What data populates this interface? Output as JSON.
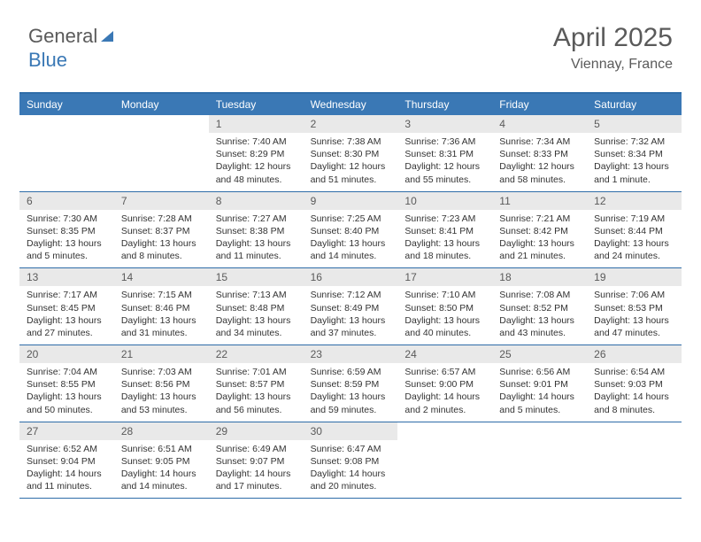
{
  "logo": {
    "text1": "General",
    "text2": "Blue"
  },
  "header": {
    "title": "April 2025",
    "location": "Viennay, France"
  },
  "colors": {
    "header_bg": "#3a78b5",
    "header_text": "#ffffff",
    "daynum_bg": "#e9e9e9",
    "border": "#2e6ca8",
    "body_text": "#333333",
    "title_text": "#5a5a5a"
  },
  "dayheads": [
    "Sunday",
    "Monday",
    "Tuesday",
    "Wednesday",
    "Thursday",
    "Friday",
    "Saturday"
  ],
  "weeks": [
    [
      null,
      null,
      {
        "day": "1",
        "sunrise": "Sunrise: 7:40 AM",
        "sunset": "Sunset: 8:29 PM",
        "daylight": "Daylight: 12 hours and 48 minutes."
      },
      {
        "day": "2",
        "sunrise": "Sunrise: 7:38 AM",
        "sunset": "Sunset: 8:30 PM",
        "daylight": "Daylight: 12 hours and 51 minutes."
      },
      {
        "day": "3",
        "sunrise": "Sunrise: 7:36 AM",
        "sunset": "Sunset: 8:31 PM",
        "daylight": "Daylight: 12 hours and 55 minutes."
      },
      {
        "day": "4",
        "sunrise": "Sunrise: 7:34 AM",
        "sunset": "Sunset: 8:33 PM",
        "daylight": "Daylight: 12 hours and 58 minutes."
      },
      {
        "day": "5",
        "sunrise": "Sunrise: 7:32 AM",
        "sunset": "Sunset: 8:34 PM",
        "daylight": "Daylight: 13 hours and 1 minute."
      }
    ],
    [
      {
        "day": "6",
        "sunrise": "Sunrise: 7:30 AM",
        "sunset": "Sunset: 8:35 PM",
        "daylight": "Daylight: 13 hours and 5 minutes."
      },
      {
        "day": "7",
        "sunrise": "Sunrise: 7:28 AM",
        "sunset": "Sunset: 8:37 PM",
        "daylight": "Daylight: 13 hours and 8 minutes."
      },
      {
        "day": "8",
        "sunrise": "Sunrise: 7:27 AM",
        "sunset": "Sunset: 8:38 PM",
        "daylight": "Daylight: 13 hours and 11 minutes."
      },
      {
        "day": "9",
        "sunrise": "Sunrise: 7:25 AM",
        "sunset": "Sunset: 8:40 PM",
        "daylight": "Daylight: 13 hours and 14 minutes."
      },
      {
        "day": "10",
        "sunrise": "Sunrise: 7:23 AM",
        "sunset": "Sunset: 8:41 PM",
        "daylight": "Daylight: 13 hours and 18 minutes."
      },
      {
        "day": "11",
        "sunrise": "Sunrise: 7:21 AM",
        "sunset": "Sunset: 8:42 PM",
        "daylight": "Daylight: 13 hours and 21 minutes."
      },
      {
        "day": "12",
        "sunrise": "Sunrise: 7:19 AM",
        "sunset": "Sunset: 8:44 PM",
        "daylight": "Daylight: 13 hours and 24 minutes."
      }
    ],
    [
      {
        "day": "13",
        "sunrise": "Sunrise: 7:17 AM",
        "sunset": "Sunset: 8:45 PM",
        "daylight": "Daylight: 13 hours and 27 minutes."
      },
      {
        "day": "14",
        "sunrise": "Sunrise: 7:15 AM",
        "sunset": "Sunset: 8:46 PM",
        "daylight": "Daylight: 13 hours and 31 minutes."
      },
      {
        "day": "15",
        "sunrise": "Sunrise: 7:13 AM",
        "sunset": "Sunset: 8:48 PM",
        "daylight": "Daylight: 13 hours and 34 minutes."
      },
      {
        "day": "16",
        "sunrise": "Sunrise: 7:12 AM",
        "sunset": "Sunset: 8:49 PM",
        "daylight": "Daylight: 13 hours and 37 minutes."
      },
      {
        "day": "17",
        "sunrise": "Sunrise: 7:10 AM",
        "sunset": "Sunset: 8:50 PM",
        "daylight": "Daylight: 13 hours and 40 minutes."
      },
      {
        "day": "18",
        "sunrise": "Sunrise: 7:08 AM",
        "sunset": "Sunset: 8:52 PM",
        "daylight": "Daylight: 13 hours and 43 minutes."
      },
      {
        "day": "19",
        "sunrise": "Sunrise: 7:06 AM",
        "sunset": "Sunset: 8:53 PM",
        "daylight": "Daylight: 13 hours and 47 minutes."
      }
    ],
    [
      {
        "day": "20",
        "sunrise": "Sunrise: 7:04 AM",
        "sunset": "Sunset: 8:55 PM",
        "daylight": "Daylight: 13 hours and 50 minutes."
      },
      {
        "day": "21",
        "sunrise": "Sunrise: 7:03 AM",
        "sunset": "Sunset: 8:56 PM",
        "daylight": "Daylight: 13 hours and 53 minutes."
      },
      {
        "day": "22",
        "sunrise": "Sunrise: 7:01 AM",
        "sunset": "Sunset: 8:57 PM",
        "daylight": "Daylight: 13 hours and 56 minutes."
      },
      {
        "day": "23",
        "sunrise": "Sunrise: 6:59 AM",
        "sunset": "Sunset: 8:59 PM",
        "daylight": "Daylight: 13 hours and 59 minutes."
      },
      {
        "day": "24",
        "sunrise": "Sunrise: 6:57 AM",
        "sunset": "Sunset: 9:00 PM",
        "daylight": "Daylight: 14 hours and 2 minutes."
      },
      {
        "day": "25",
        "sunrise": "Sunrise: 6:56 AM",
        "sunset": "Sunset: 9:01 PM",
        "daylight": "Daylight: 14 hours and 5 minutes."
      },
      {
        "day": "26",
        "sunrise": "Sunrise: 6:54 AM",
        "sunset": "Sunset: 9:03 PM",
        "daylight": "Daylight: 14 hours and 8 minutes."
      }
    ],
    [
      {
        "day": "27",
        "sunrise": "Sunrise: 6:52 AM",
        "sunset": "Sunset: 9:04 PM",
        "daylight": "Daylight: 14 hours and 11 minutes."
      },
      {
        "day": "28",
        "sunrise": "Sunrise: 6:51 AM",
        "sunset": "Sunset: 9:05 PM",
        "daylight": "Daylight: 14 hours and 14 minutes."
      },
      {
        "day": "29",
        "sunrise": "Sunrise: 6:49 AM",
        "sunset": "Sunset: 9:07 PM",
        "daylight": "Daylight: 14 hours and 17 minutes."
      },
      {
        "day": "30",
        "sunrise": "Sunrise: 6:47 AM",
        "sunset": "Sunset: 9:08 PM",
        "daylight": "Daylight: 14 hours and 20 minutes."
      },
      null,
      null,
      null
    ]
  ]
}
